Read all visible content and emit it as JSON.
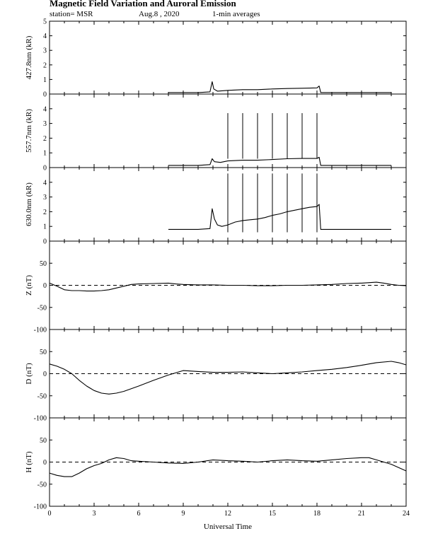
{
  "header": {
    "title": "Magnetic Field Variation and Auroral Emission",
    "station": "station= MSR",
    "date": "Aug.8  , 2020",
    "averaging": "1-min averages"
  },
  "chart_data": [
    {
      "type": "line",
      "id": "p4278",
      "ylabel": "427.8nm (kR)",
      "ylim": [
        0,
        5
      ],
      "yticks": [
        0,
        1,
        2,
        3,
        4,
        5
      ],
      "xlim": [
        0,
        24
      ],
      "series": [
        {
          "x": [
            8.0,
            9.0,
            10.0,
            10.8,
            10.95,
            11.05,
            11.3,
            12,
            13,
            14,
            15,
            16,
            17,
            18.0,
            18.15,
            18.25,
            19,
            20,
            21,
            22,
            23.0
          ],
          "y": [
            0.1,
            0.1,
            0.1,
            0.15,
            0.85,
            0.35,
            0.2,
            0.25,
            0.3,
            0.3,
            0.35,
            0.38,
            0.4,
            0.42,
            0.55,
            0.1,
            0.1,
            0.1,
            0.1,
            0.1,
            0.1
          ]
        }
      ]
    },
    {
      "type": "line",
      "id": "p5577",
      "ylabel": "557.7nm (kR)",
      "ylim": [
        0,
        5
      ],
      "yticks": [
        0,
        1,
        2,
        3,
        4
      ],
      "xlim": [
        0,
        24
      ],
      "spikes": [
        12,
        13,
        14,
        15,
        16,
        17,
        18
      ],
      "spike_top": 3.7,
      "series": [
        {
          "x": [
            8.0,
            9,
            10,
            10.8,
            10.95,
            11.1,
            11.5,
            12,
            13,
            14,
            15,
            16,
            17,
            18.0,
            18.15,
            18.25,
            19,
            20,
            21,
            22,
            23.0
          ],
          "y": [
            0.15,
            0.15,
            0.15,
            0.2,
            0.6,
            0.4,
            0.35,
            0.45,
            0.5,
            0.5,
            0.55,
            0.6,
            0.62,
            0.62,
            0.7,
            0.15,
            0.15,
            0.15,
            0.15,
            0.15,
            0.15
          ]
        }
      ]
    },
    {
      "type": "line",
      "id": "p6300",
      "ylabel": "630.0nm (kR)",
      "ylim": [
        0,
        5
      ],
      "yticks": [
        0,
        1,
        2,
        3,
        4
      ],
      "xlim": [
        0,
        24
      ],
      "spikes": [
        12,
        13,
        14,
        15,
        16,
        17,
        18
      ],
      "spike_top": 4.6,
      "series": [
        {
          "x": [
            8.0,
            9,
            10,
            10.8,
            10.95,
            11.1,
            11.3,
            11.6,
            12,
            12.5,
            13,
            13.5,
            14,
            14.5,
            15,
            15.5,
            16,
            16.5,
            17,
            17.5,
            18.0,
            18.15,
            18.25,
            19,
            20,
            21,
            22,
            23.0
          ],
          "y": [
            0.8,
            0.8,
            0.8,
            0.85,
            2.2,
            1.5,
            1.1,
            1.0,
            1.1,
            1.3,
            1.4,
            1.45,
            1.5,
            1.6,
            1.75,
            1.85,
            2.0,
            2.1,
            2.2,
            2.3,
            2.35,
            2.5,
            0.8,
            0.8,
            0.8,
            0.8,
            0.8,
            0.8
          ]
        }
      ]
    },
    {
      "type": "line",
      "id": "pZ",
      "ylabel": "Z (nT)",
      "ylim": [
        -100,
        100
      ],
      "yticks": [
        -100,
        -50,
        0,
        50
      ],
      "xlim": [
        0,
        24
      ],
      "zero_line": true,
      "series": [
        {
          "x": [
            0,
            0.5,
            1,
            1.5,
            2,
            2.5,
            3,
            3.5,
            4,
            4.5,
            5,
            5.5,
            6,
            7,
            8,
            8.5,
            9,
            10,
            11,
            12,
            13,
            14,
            15,
            16,
            17,
            18,
            19,
            20,
            21,
            22,
            22.5,
            23,
            23.5,
            24
          ],
          "y": [
            5,
            -2,
            -10,
            -12,
            -12,
            -13,
            -13,
            -12,
            -10,
            -6,
            -2,
            2,
            3,
            4,
            5,
            3,
            2,
            1,
            1,
            0,
            0,
            -1,
            -1,
            0,
            0,
            1,
            2,
            4,
            5,
            7,
            5,
            2,
            0,
            -1
          ]
        }
      ]
    },
    {
      "type": "line",
      "id": "pD",
      "ylabel": "D (nT)",
      "ylim": [
        -100,
        100
      ],
      "yticks": [
        -100,
        -50,
        0,
        50
      ],
      "xlim": [
        0,
        24
      ],
      "zero_line": true,
      "series": [
        {
          "x": [
            0,
            0.5,
            1,
            1.5,
            2,
            2.5,
            3,
            3.5,
            4,
            4.5,
            5,
            6,
            7,
            8,
            9,
            10,
            11,
            12,
            13,
            14,
            15,
            16,
            17,
            18,
            19,
            20,
            21,
            22,
            23,
            23.5,
            24
          ],
          "y": [
            22,
            17,
            10,
            0,
            -15,
            -28,
            -38,
            -44,
            -46,
            -44,
            -40,
            -28,
            -15,
            -3,
            7,
            5,
            3,
            3,
            4,
            2,
            0,
            2,
            4,
            7,
            10,
            14,
            19,
            25,
            28,
            25,
            20
          ]
        }
      ]
    },
    {
      "type": "line",
      "id": "pH",
      "ylabel": "H (nT)",
      "ylim": [
        -100,
        100
      ],
      "yticks": [
        -100,
        -50,
        0,
        50
      ],
      "xlim": [
        0,
        24
      ],
      "zero_line": true,
      "xticks": [
        0,
        3,
        6,
        9,
        12,
        15,
        18,
        21,
        24
      ],
      "xlabel": "Universal Time",
      "series": [
        {
          "x": [
            0,
            0.5,
            1,
            1.5,
            2,
            2.5,
            3,
            3.5,
            4,
            4.5,
            5,
            5.5,
            6,
            7,
            8,
            9,
            10,
            11,
            12,
            13,
            14,
            15,
            16,
            17,
            18,
            19,
            20,
            21,
            21.5,
            22,
            23,
            24
          ],
          "y": [
            -25,
            -30,
            -33,
            -33,
            -25,
            -15,
            -8,
            -3,
            5,
            10,
            8,
            3,
            2,
            0,
            -2,
            -3,
            0,
            5,
            3,
            2,
            0,
            3,
            5,
            3,
            2,
            5,
            8,
            10,
            10,
            5,
            -5,
            -20
          ]
        }
      ]
    }
  ]
}
